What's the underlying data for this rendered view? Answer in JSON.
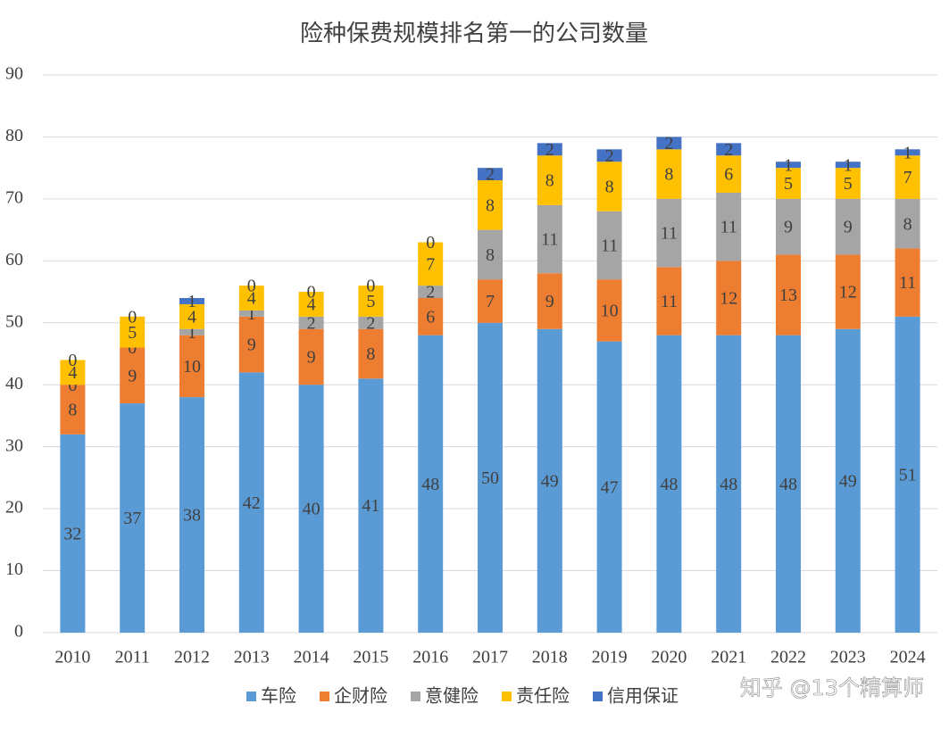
{
  "chart_data": {
    "type": "stacked-bar",
    "title": "险种保费规模排名第一的公司数量",
    "categories": [
      "2010",
      "2011",
      "2012",
      "2013",
      "2014",
      "2015",
      "2016",
      "2017",
      "2018",
      "2019",
      "2020",
      "2021",
      "2022",
      "2023",
      "2024"
    ],
    "series": [
      {
        "name": "车险",
        "color": "#5b9bd5",
        "values": [
          32,
          37,
          38,
          42,
          40,
          41,
          48,
          50,
          49,
          47,
          48,
          48,
          48,
          49,
          51
        ]
      },
      {
        "name": "企财险",
        "color": "#ed7d31",
        "values": [
          8,
          9,
          10,
          9,
          9,
          8,
          6,
          7,
          9,
          10,
          11,
          12,
          13,
          12,
          11
        ]
      },
      {
        "name": "意健险",
        "color": "#a5a5a5",
        "values": [
          0,
          0,
          1,
          1,
          2,
          2,
          2,
          8,
          11,
          11,
          11,
          11,
          9,
          9,
          8
        ]
      },
      {
        "name": "责任险",
        "color": "#ffc000",
        "values": [
          4,
          5,
          4,
          4,
          4,
          5,
          7,
          8,
          8,
          8,
          8,
          6,
          5,
          5,
          7
        ]
      },
      {
        "name": "信用保证",
        "color": "#4472c4",
        "values": [
          0,
          0,
          1,
          0,
          0,
          0,
          0,
          2,
          2,
          2,
          2,
          2,
          1,
          1,
          1
        ]
      }
    ],
    "ylim": [
      0,
      90
    ],
    "yticks": [
      0,
      10,
      20,
      30,
      40,
      50,
      60,
      70,
      80,
      90
    ],
    "grid": true,
    "legend": "bottom",
    "watermark": "知乎 @13个精算师"
  }
}
